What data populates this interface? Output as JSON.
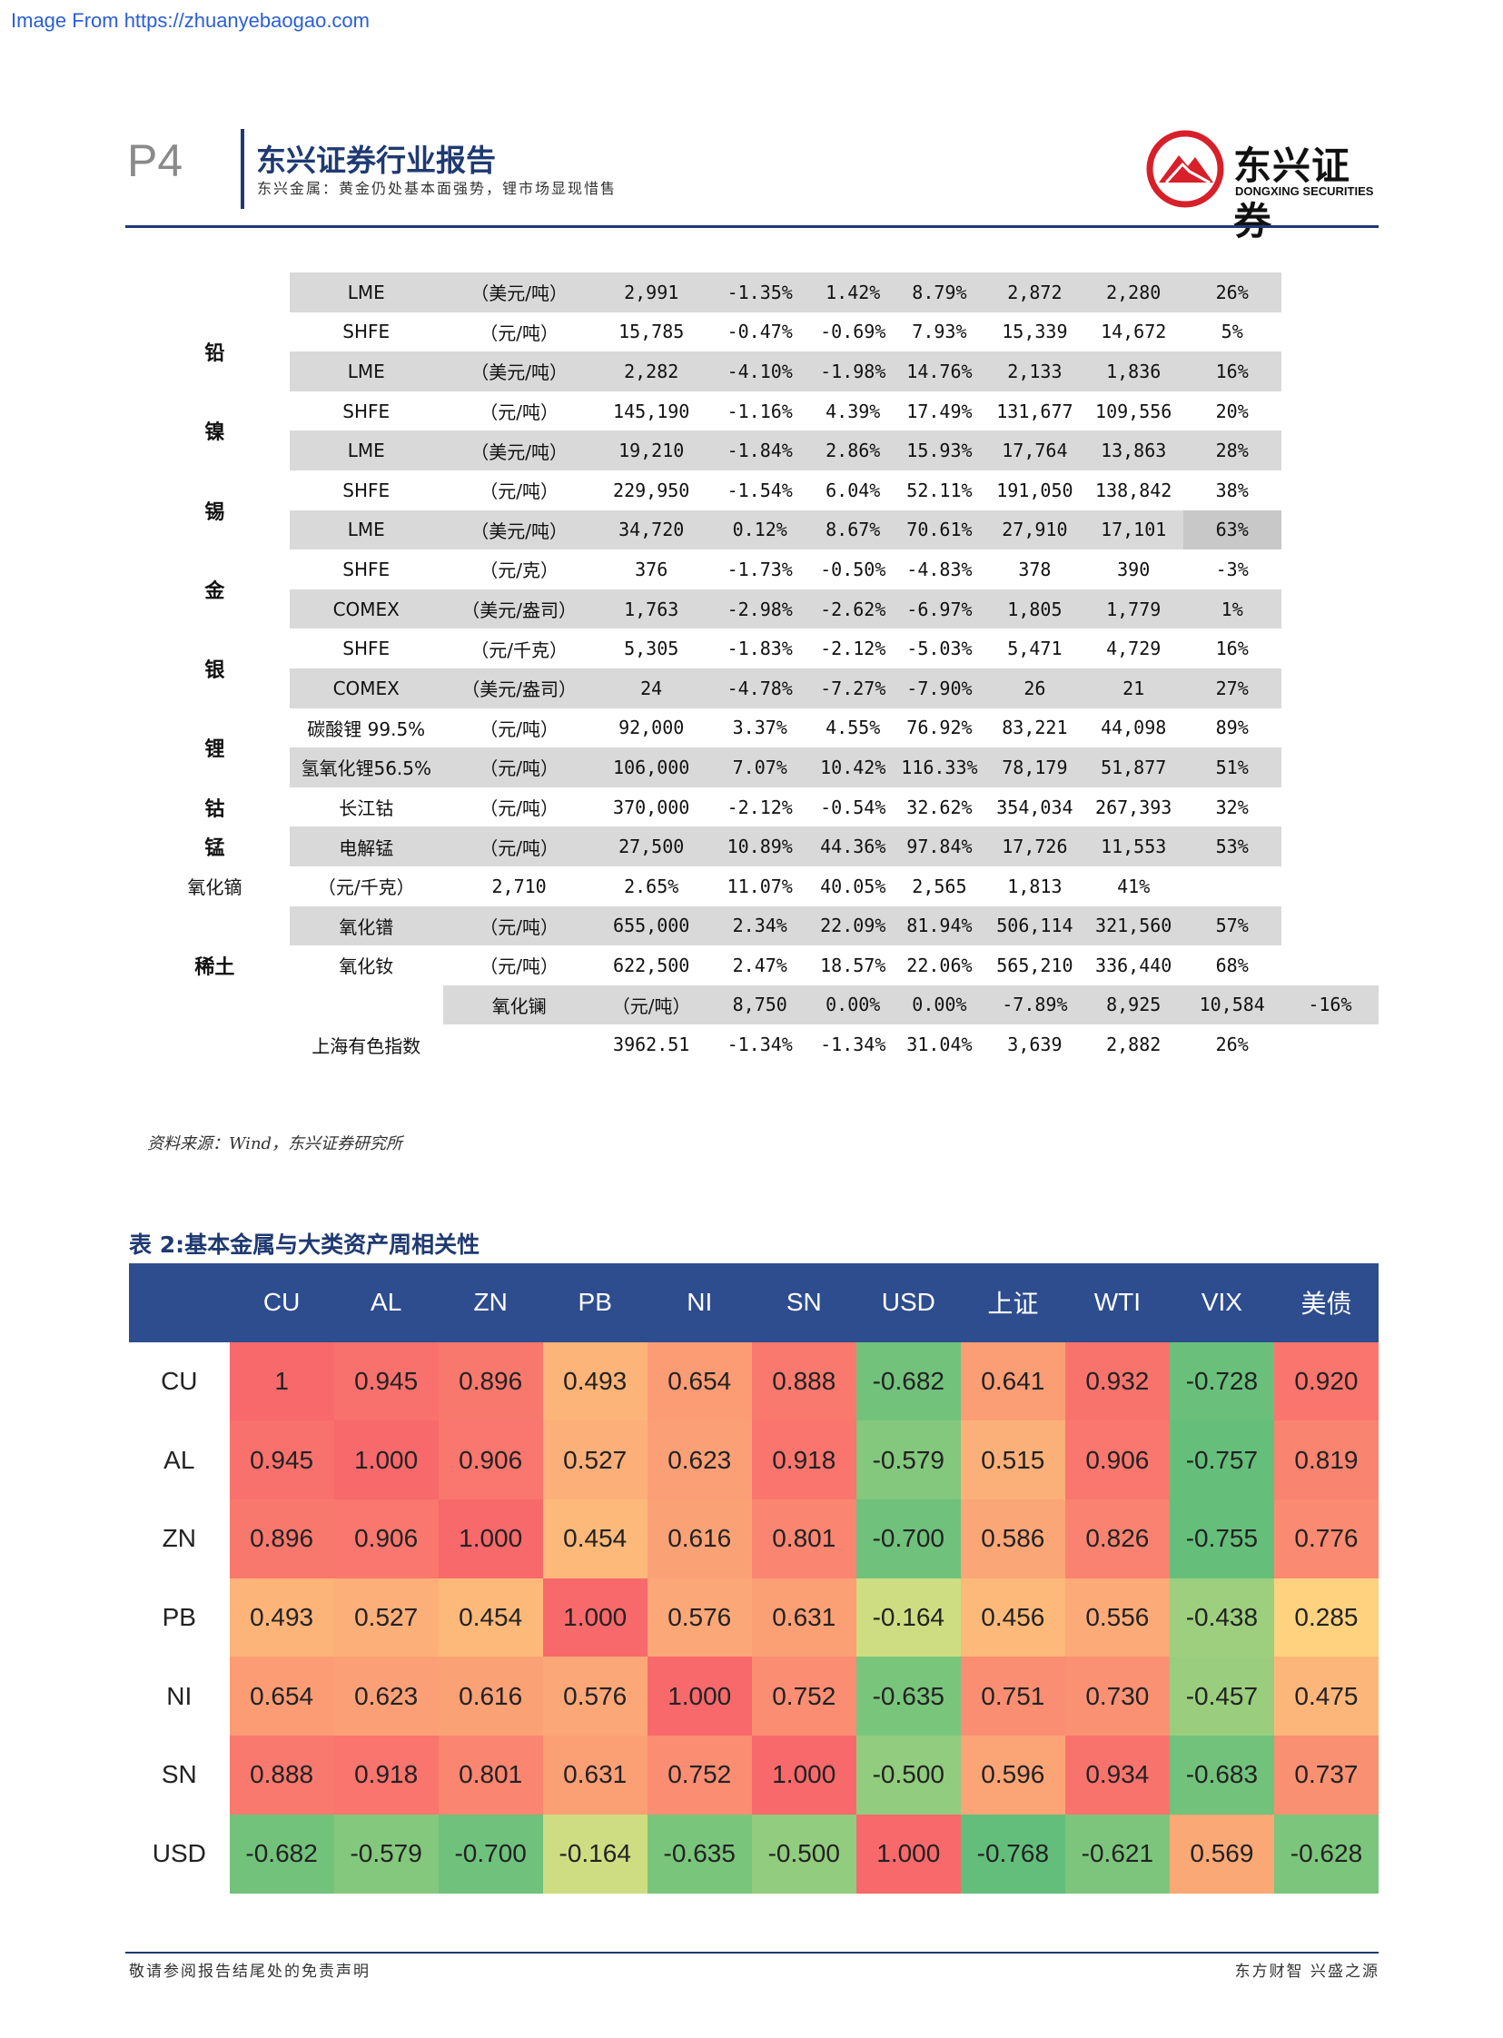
{
  "watermark": "Image From https://zhuanyebaogao.com",
  "header": {
    "page_number": "P4",
    "title": "东兴证券行业报告",
    "subtitle": "东兴金属：黄金仍处基本面强势，锂市场显现惜售",
    "logo_cn": "东兴证券",
    "logo_en": "DONGXING SECURITIES",
    "logo_color": "#d7202a"
  },
  "table1": {
    "rows": [
      {
        "metal": "",
        "sub": "LME",
        "unit": "（美元/吨）",
        "v1": "2,991",
        "v2": "-1.35%",
        "v3": "1.42%",
        "v4": "8.79%",
        "v5": "2,872",
        "v6": "2,280",
        "v7": "26%"
      },
      {
        "metal": "铅",
        "sub": "SHFE",
        "unit": "（元/吨）",
        "v1": "15,785",
        "v2": "-0.47%",
        "v3": "-0.69%",
        "v4": "7.93%",
        "v5": "15,339",
        "v6": "14,672",
        "v7": "5%"
      },
      {
        "metal": "",
        "sub": "LME",
        "unit": "（美元/吨）",
        "v1": "2,282",
        "v2": "-4.10%",
        "v3": "-1.98%",
        "v4": "14.76%",
        "v5": "2,133",
        "v6": "1,836",
        "v7": "16%"
      },
      {
        "metal": "镍",
        "sub": "SHFE",
        "unit": "（元/吨）",
        "v1": "145,190",
        "v2": "-1.16%",
        "v3": "4.39%",
        "v4": "17.49%",
        "v5": "131,677",
        "v6": "109,556",
        "v7": "20%"
      },
      {
        "metal": "",
        "sub": "LME",
        "unit": "（美元/吨）",
        "v1": "19,210",
        "v2": "-1.84%",
        "v3": "2.86%",
        "v4": "15.93%",
        "v5": "17,764",
        "v6": "13,863",
        "v7": "28%"
      },
      {
        "metal": "锡",
        "sub": "SHFE",
        "unit": "（元/吨）",
        "v1": "229,950",
        "v2": "-1.54%",
        "v3": "6.04%",
        "v4": "52.11%",
        "v5": "191,050",
        "v6": "138,842",
        "v7": "38%"
      },
      {
        "metal": "",
        "sub": "LME",
        "unit": "（美元/吨）",
        "v1": "34,720",
        "v2": "0.12%",
        "v3": "8.67%",
        "v4": "70.61%",
        "v5": "27,910",
        "v6": "17,101",
        "v7": "63%"
      },
      {
        "metal": "金",
        "sub": "SHFE",
        "unit": "（元/克）",
        "v1": "376",
        "v2": "-1.73%",
        "v3": "-0.50%",
        "v4": "-4.83%",
        "v5": "378",
        "v6": "390",
        "v7": "-3%"
      },
      {
        "metal": "",
        "sub": "COMEX",
        "unit": "（美元/盎司）",
        "v1": "1,763",
        "v2": "-2.98%",
        "v3": "-2.62%",
        "v4": "-6.97%",
        "v5": "1,805",
        "v6": "1,779",
        "v7": "1%"
      },
      {
        "metal": "银",
        "sub": "SHFE",
        "unit": "（元/千克）",
        "v1": "5,305",
        "v2": "-1.83%",
        "v3": "-2.12%",
        "v4": "-5.03%",
        "v5": "5,471",
        "v6": "4,729",
        "v7": "16%"
      },
      {
        "metal": "",
        "sub": "COMEX",
        "unit": "（美元/盎司）",
        "v1": "24",
        "v2": "-4.78%",
        "v3": "-7.27%",
        "v4": "-7.90%",
        "v5": "26",
        "v6": "21",
        "v7": "27%"
      },
      {
        "metal": "锂",
        "sub": "碳酸锂 99.5%",
        "unit": "（元/吨）",
        "v1": "92,000",
        "v2": "3.37%",
        "v3": "4.55%",
        "v4": "76.92%",
        "v5": "83,221",
        "v6": "44,098",
        "v7": "89%"
      },
      {
        "metal": "",
        "sub": "氢氧化锂56.5%",
        "unit": "（元/吨）",
        "v1": "106,000",
        "v2": "7.07%",
        "v3": "10.42%",
        "v4": "116.33%",
        "v5": "78,179",
        "v6": "51,877",
        "v7": "51%"
      },
      {
        "metal": "钴",
        "sub": "长江钴",
        "unit": "（元/吨）",
        "v1": "370,000",
        "v2": "-2.12%",
        "v3": "-0.54%",
        "v4": "32.62%",
        "v5": "354,034",
        "v6": "267,393",
        "v7": "32%"
      },
      {
        "metal": "锰",
        "sub": "电解锰",
        "unit": "（元/吨）",
        "v1": "27,500",
        "v2": "10.89%",
        "v3": "44.36%",
        "v4": "97.84%",
        "v5": "17,726",
        "v6": "11,553",
        "v7": "53%"
      },
      {
        "metal": "",
        "sub": "氧化镝",
        "unit": "（元/千克）",
        "v1": "2,710",
        "v2": "2.65%",
        "v3": "11.07%",
        "v4": "40.05%",
        "v5": "2,565",
        "v6": "1,813",
        "v7": "41%"
      },
      {
        "metal": "稀土",
        "sub": "氧化镨",
        "unit": "（元/吨）",
        "v1": "655,000",
        "v2": "2.34%",
        "v3": "22.09%",
        "v4": "81.94%",
        "v5": "506,114",
        "v6": "321,560",
        "v7": "57%"
      },
      {
        "metal": "",
        "sub": "氧化钕",
        "unit": "（元/吨）",
        "v1": "622,500",
        "v2": "2.47%",
        "v3": "18.57%",
        "v4": "22.06%",
        "v5": "565,210",
        "v6": "336,440",
        "v7": "68%"
      },
      {
        "metal": "",
        "sub": "氧化镧",
        "unit": "（元/吨）",
        "v1": "8,750",
        "v2": "0.00%",
        "v3": "0.00%",
        "v4": "-7.89%",
        "v5": "8,925",
        "v6": "10,584",
        "v7": "-16%"
      },
      {
        "metal": "",
        "sub": "上海有色指数",
        "unit": "",
        "v1": "3962.51",
        "v2": "-1.34%",
        "v3": "-1.34%",
        "v4": "31.04%",
        "v5": "3,639",
        "v6": "2,882",
        "v7": "26%"
      }
    ]
  },
  "source_note": "资料来源：Wind，东兴证券研究所",
  "table2": {
    "title": "表 2:基本金属与大类资产周相关性",
    "columns": [
      "CU",
      "AL",
      "ZN",
      "PB",
      "NI",
      "SN",
      "USD",
      "上证",
      "WTI",
      "VIX",
      "美债"
    ],
    "header_color": "#2e4d8f",
    "rows": [
      {
        "label": "CU",
        "values": [
          "1",
          "0.945",
          "0.896",
          "0.493",
          "0.654",
          "0.888",
          "-0.682",
          "0.641",
          "0.932",
          "-0.728",
          "0.920"
        ]
      },
      {
        "label": "AL",
        "values": [
          "0.945",
          "1.000",
          "0.906",
          "0.527",
          "0.623",
          "0.918",
          "-0.579",
          "0.515",
          "0.906",
          "-0.757",
          "0.819"
        ]
      },
      {
        "label": "ZN",
        "values": [
          "0.896",
          "0.906",
          "1.000",
          "0.454",
          "0.616",
          "0.801",
          "-0.700",
          "0.586",
          "0.826",
          "-0.755",
          "0.776"
        ]
      },
      {
        "label": "PB",
        "values": [
          "0.493",
          "0.527",
          "0.454",
          "1.000",
          "0.576",
          "0.631",
          "-0.164",
          "0.456",
          "0.556",
          "-0.438",
          "0.285"
        ]
      },
      {
        "label": "NI",
        "values": [
          "0.654",
          "0.623",
          "0.616",
          "0.576",
          "1.000",
          "0.752",
          "-0.635",
          "0.751",
          "0.730",
          "-0.457",
          "0.475"
        ]
      },
      {
        "label": "SN",
        "values": [
          "0.888",
          "0.918",
          "0.801",
          "0.631",
          "0.752",
          "1.000",
          "-0.500",
          "0.596",
          "0.934",
          "-0.683",
          "0.737"
        ]
      },
      {
        "label": "USD",
        "values": [
          "-0.682",
          "-0.579",
          "-0.700",
          "-0.164",
          "-0.635",
          "-0.500",
          "1.000",
          "-0.768",
          "-0.621",
          "0.569",
          "-0.628"
        ]
      }
    ],
    "color_scale": {
      "low": "#63be7b",
      "mid": "#ffeb84",
      "high": "#f8696b"
    }
  },
  "footer": {
    "left": "敬请参阅报告结尾处的免责声明",
    "right": "东方财智 兴盛之源"
  }
}
